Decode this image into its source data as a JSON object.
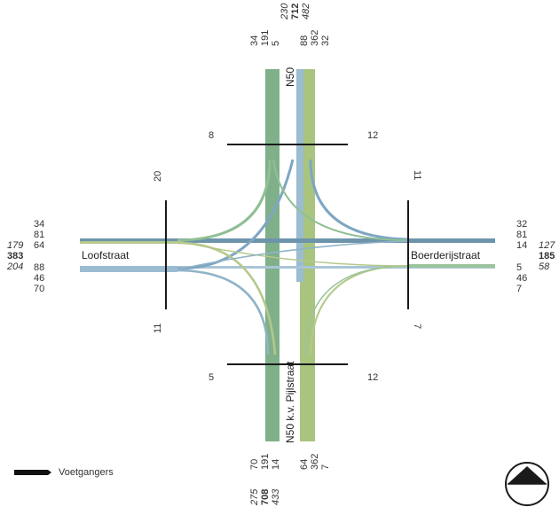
{
  "streets": {
    "north": "N50",
    "south": "N50 k.v. Pijlstraat",
    "west": "Loofstraat",
    "east": "Boerderijstraat"
  },
  "north_arm": {
    "in_lanes": [
      "34",
      "191",
      "5"
    ],
    "out_lanes": [
      "88",
      "362",
      "32"
    ],
    "totals": {
      "in": "230",
      "total": "712",
      "out": "482"
    }
  },
  "south_arm": {
    "out_lanes": [
      "70",
      "191",
      "14"
    ],
    "in_lanes": [
      "64",
      "362",
      "7"
    ],
    "totals": {
      "out": "275",
      "total": "708",
      "in": "433"
    }
  },
  "west_arm": {
    "out_lanes": [
      "34",
      "81",
      "64"
    ],
    "in_lanes": [
      "88",
      "46",
      "70"
    ],
    "totals": {
      "out": "179",
      "total": "383",
      "in": "204"
    }
  },
  "east_arm": {
    "in_lanes": [
      "32",
      "81",
      "14"
    ],
    "out_lanes": [
      "5",
      "46",
      "7"
    ],
    "totals": {
      "in": "127",
      "total": "185",
      "out": "58"
    }
  },
  "pedestrians": {
    "north_left": "8",
    "north_right": "12",
    "west_top": "20",
    "west_bottom": "11",
    "east_top": "11",
    "east_bottom": "7",
    "south_left": "5",
    "south_right": "12"
  },
  "legend": {
    "pedestrians_label": "Voetgangers"
  },
  "colors": {
    "green": "#7fb08a",
    "olive": "#a8c47e",
    "blue": "#8fb3c8",
    "steel": "#6d94ab",
    "bar": "#1a1a1a"
  },
  "icons": {
    "north_arrow": "north-arrow-icon"
  }
}
